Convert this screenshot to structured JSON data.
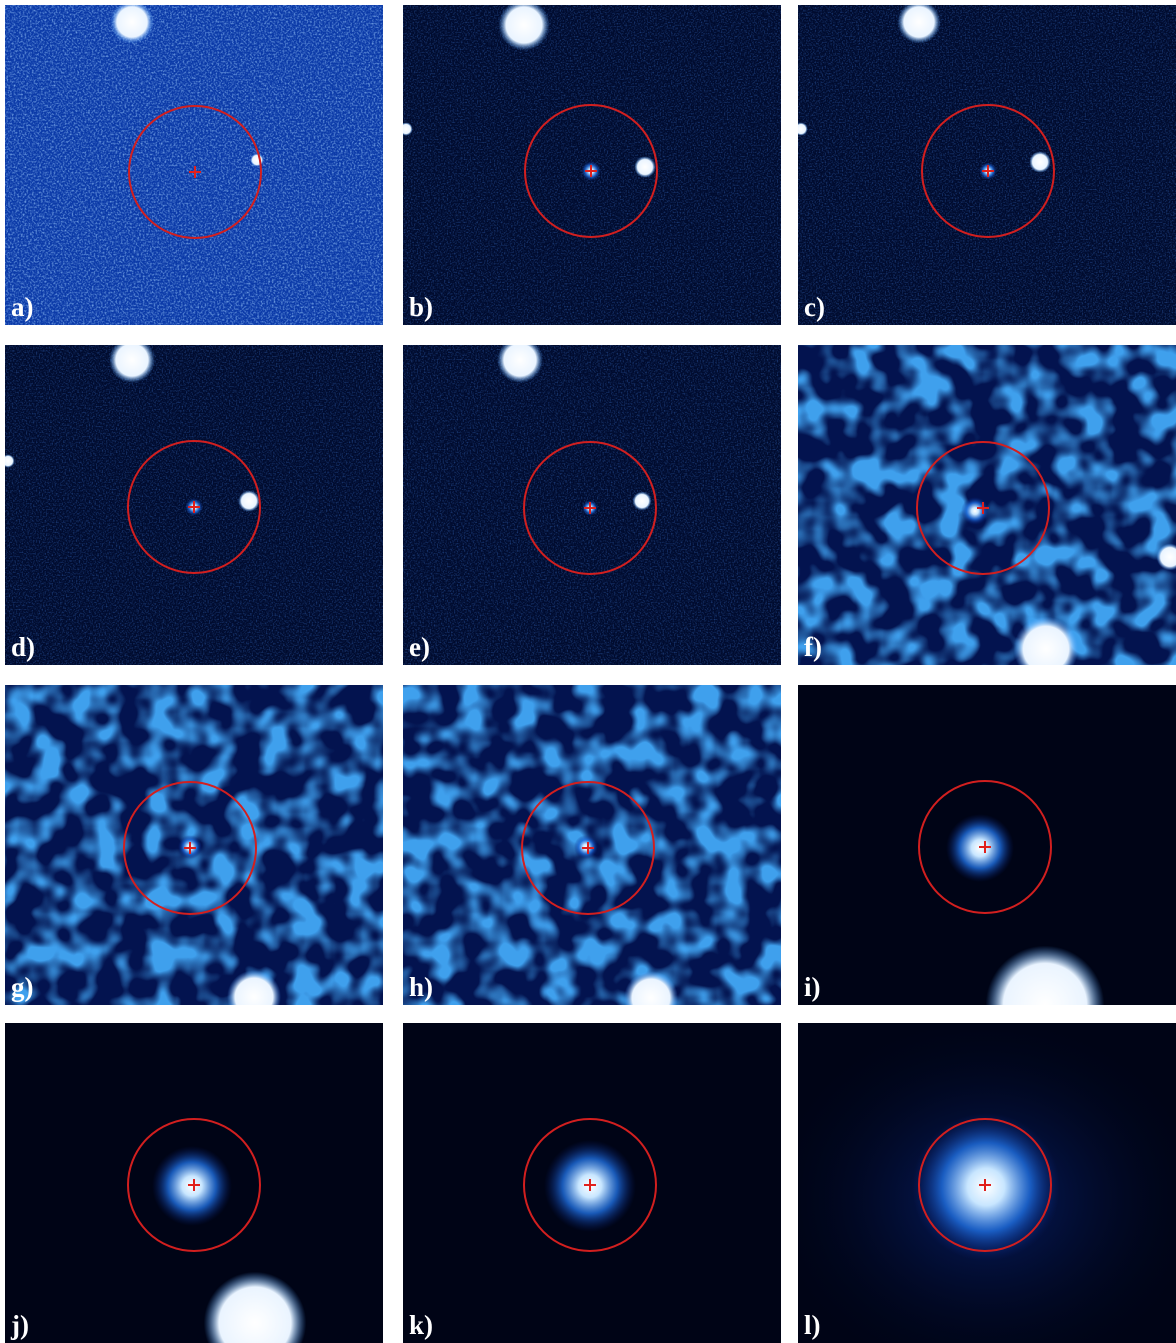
{
  "figure": {
    "panels": [
      {
        "label": "a)",
        "style": "noise-bright"
      },
      {
        "label": "b)",
        "style": "dark-fine"
      },
      {
        "label": "c)",
        "style": "dark-fine"
      },
      {
        "label": "d)",
        "style": "dark-fine"
      },
      {
        "label": "e)",
        "style": "dark-fine"
      },
      {
        "label": "f)",
        "style": "blobby"
      },
      {
        "label": "g)",
        "style": "blobby"
      },
      {
        "label": "h)",
        "style": "blobby"
      },
      {
        "label": "i)",
        "style": "smooth"
      },
      {
        "label": "j)",
        "style": "smooth"
      },
      {
        "label": "k)",
        "style": "smooth"
      },
      {
        "label": "l)",
        "style": "smooth-wide"
      }
    ],
    "colors": {
      "circle": "#d21f1f",
      "cross": "#e0201c",
      "background_dark": "#000b2e",
      "background_noise": "#0b3aa8",
      "source": "#ffffff"
    }
  }
}
